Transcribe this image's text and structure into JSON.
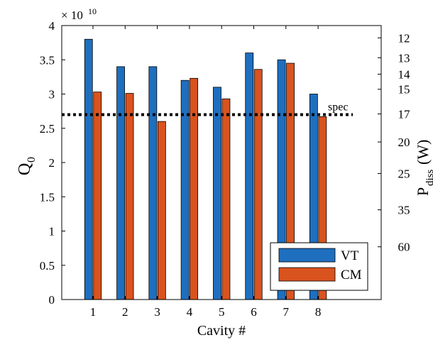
{
  "chart_data": {
    "type": "bar",
    "xlabel": "Cavity #",
    "ylabel": "Q",
    "ylabel_sub": "0",
    "y2label": "P",
    "y2label_sub": "diss",
    "y2label_unit": "(W)",
    "y_exponent_base": "× 10",
    "y_exponent_power": "10",
    "ylim": [
      0,
      4
    ],
    "y_scale_multiplier": 10000000000.0,
    "yticks": [
      0,
      0.5,
      1,
      1.5,
      2,
      2.5,
      3,
      3.5,
      4
    ],
    "ytick_labels": [
      "0",
      "0.5",
      "1",
      "1.5",
      "2",
      "2.5",
      "3",
      "3.5",
      "4"
    ],
    "categories": [
      "1",
      "2",
      "3",
      "4",
      "5",
      "6",
      "7",
      "8"
    ],
    "series": [
      {
        "name": "VT",
        "color": "#1f6fbf",
        "values": [
          3.8,
          3.4,
          3.4,
          3.2,
          3.1,
          3.6,
          3.5,
          3.0
        ]
      },
      {
        "name": "CM",
        "color": "#d9531e",
        "values": [
          3.03,
          3.01,
          2.6,
          3.23,
          2.93,
          3.36,
          3.45,
          2.67
        ]
      }
    ],
    "right_axis_ticks": [
      {
        "label": "12",
        "q": 3.82
      },
      {
        "label": "13",
        "q": 3.53
      },
      {
        "label": "14",
        "q": 3.29
      },
      {
        "label": "15",
        "q": 3.07
      },
      {
        "label": "17",
        "q": 2.71
      },
      {
        "label": "20",
        "q": 2.3
      },
      {
        "label": "25",
        "q": 1.84
      },
      {
        "label": "35",
        "q": 1.31
      },
      {
        "label": "60",
        "q": 0.77
      }
    ],
    "reference_line": {
      "label": "spec",
      "value": 2.7,
      "style": "dotted"
    },
    "legend_placement": "bottom-right",
    "grid": false
  }
}
